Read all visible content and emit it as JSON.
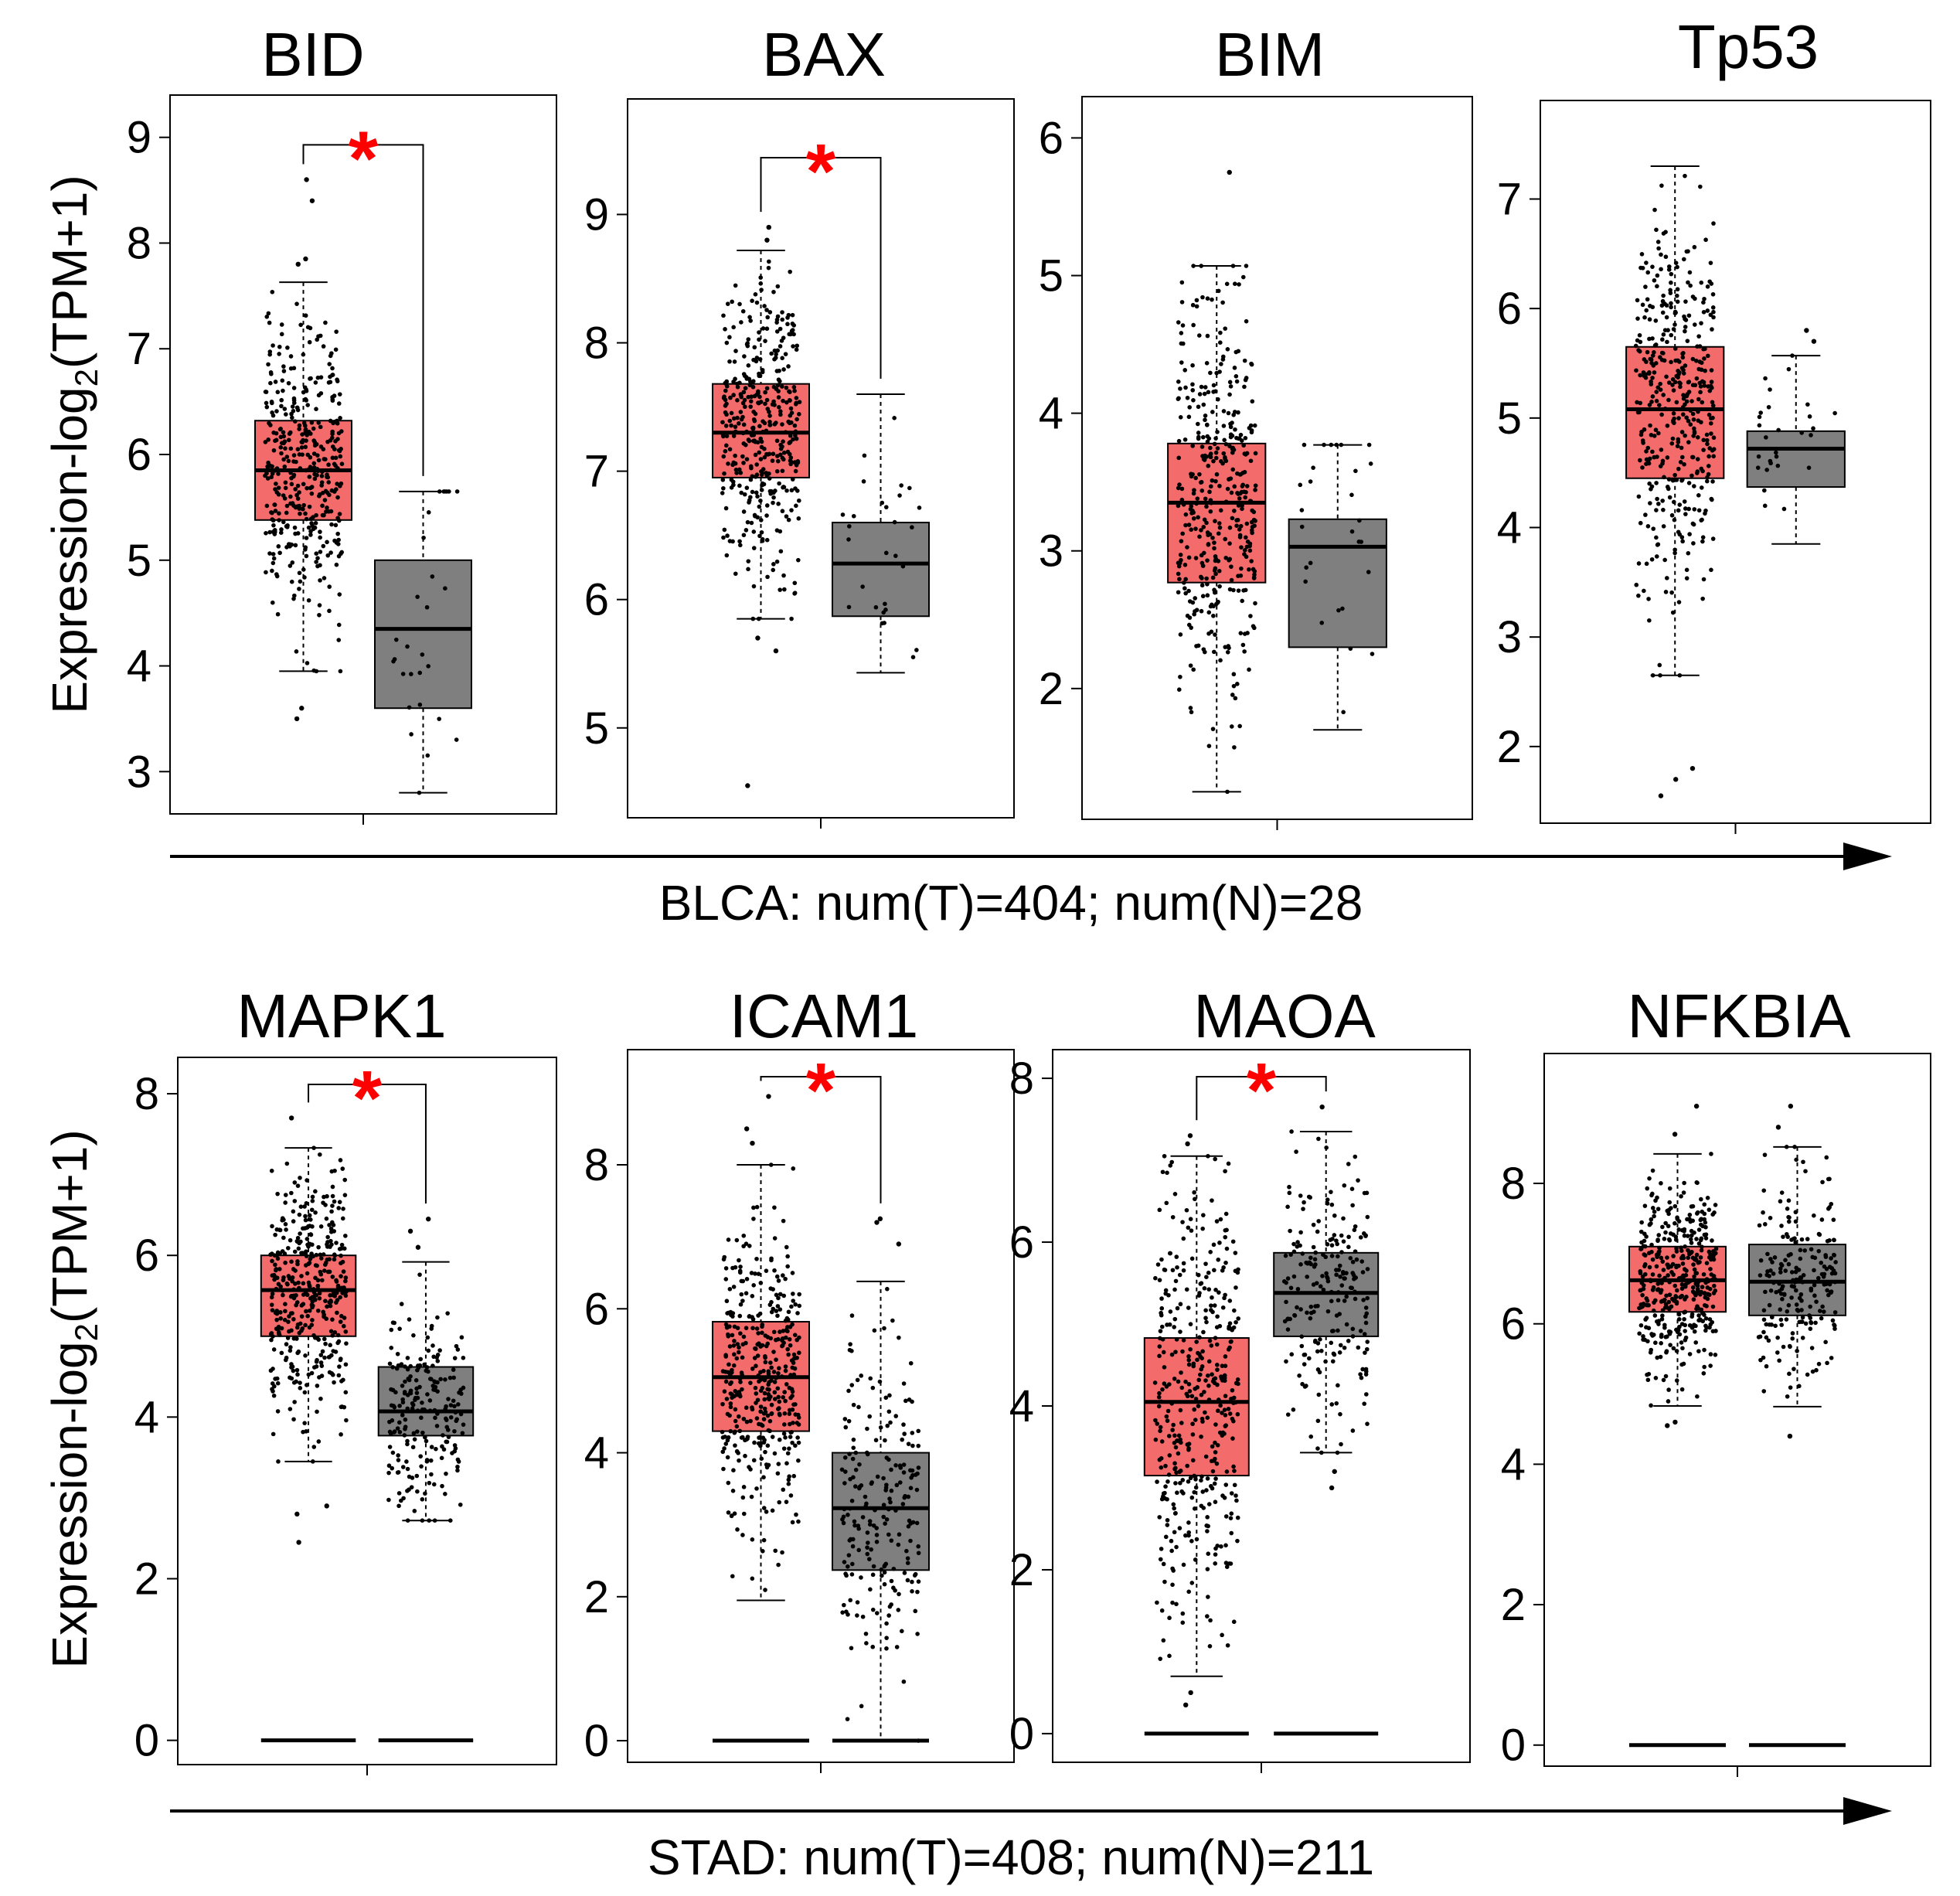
{
  "figure": {
    "colors": {
      "tumor": "#F36B6B",
      "normal": "#7F7F7F",
      "star": "#FF0000",
      "point": "#000000"
    },
    "ylabel_prefix": "Expression-log",
    "ylabel_sub": "2",
    "ylabel_suffix": "(TPM+1)",
    "star_symbol": "*"
  },
  "groups": [
    {
      "caption": "BLCA: num(T)=404; num(N)=28"
    },
    {
      "caption": "STAD: num(T)=408; num(N)=211"
    }
  ],
  "chart_data": [
    {
      "type": "box",
      "title": "BID",
      "ylim": [
        2.6,
        9.4
      ],
      "yticks": [
        3,
        4,
        5,
        6,
        7,
        8,
        9
      ],
      "significant": true,
      "series": [
        {
          "name": "Tumor",
          "n": 404,
          "q1": 5.38,
          "median": 5.85,
          "q3": 6.32,
          "whisker_low": 3.95,
          "whisker_high": 7.63,
          "min": 3.45,
          "max": 8.6,
          "outliers": [
            8.6,
            8.4,
            7.85,
            7.8,
            3.6,
            3.5
          ]
        },
        {
          "name": "Normal",
          "n": 28,
          "q1": 3.6,
          "median": 4.35,
          "q3": 5.0,
          "whisker_low": 2.8,
          "whisker_high": 5.65,
          "min": 2.8,
          "max": 5.65,
          "outliers": []
        }
      ]
    },
    {
      "type": "box",
      "title": "BAX",
      "ylim": [
        4.3,
        9.9
      ],
      "yticks": [
        5,
        6,
        7,
        8,
        9
      ],
      "significant": true,
      "series": [
        {
          "name": "Tumor",
          "n": 404,
          "q1": 6.95,
          "median": 7.3,
          "q3": 7.68,
          "whisker_low": 5.85,
          "whisker_high": 8.72,
          "min": 4.55,
          "max": 8.9,
          "outliers": [
            8.9,
            8.8,
            5.7,
            5.6,
            4.55
          ]
        },
        {
          "name": "Normal",
          "n": 28,
          "q1": 5.87,
          "median": 6.28,
          "q3": 6.6,
          "whisker_low": 5.43,
          "whisker_high": 7.6,
          "min": 5.43,
          "max": 7.6,
          "outliers": []
        }
      ]
    },
    {
      "type": "box",
      "title": "BIM",
      "ylim": [
        1.05,
        6.3
      ],
      "yticks": [
        2,
        3,
        4,
        5,
        6
      ],
      "significant": false,
      "series": [
        {
          "name": "Tumor",
          "n": 404,
          "q1": 2.77,
          "median": 3.35,
          "q3": 3.78,
          "whisker_low": 1.25,
          "whisker_high": 5.07,
          "min": 1.25,
          "max": 5.75,
          "outliers": [
            5.75
          ]
        },
        {
          "name": "Normal",
          "n": 28,
          "q1": 2.3,
          "median": 3.03,
          "q3": 3.23,
          "whisker_low": 1.7,
          "whisker_high": 3.77,
          "min": 1.7,
          "max": 3.77,
          "outliers": []
        }
      ]
    },
    {
      "type": "box",
      "title": "Tp53",
      "ylim": [
        1.3,
        7.9
      ],
      "yticks": [
        2,
        3,
        4,
        5,
        6,
        7
      ],
      "significant": false,
      "series": [
        {
          "name": "Tumor",
          "n": 404,
          "q1": 4.45,
          "median": 5.08,
          "q3": 5.65,
          "whisker_low": 2.65,
          "whisker_high": 7.3,
          "min": 1.55,
          "max": 7.3,
          "outliers": [
            1.8,
            1.7,
            1.55
          ]
        },
        {
          "name": "Normal",
          "n": 28,
          "q1": 4.37,
          "median": 4.72,
          "q3": 4.88,
          "whisker_low": 3.85,
          "whisker_high": 5.57,
          "min": 3.85,
          "max": 5.8,
          "outliers": [
            5.8,
            5.7
          ]
        }
      ]
    },
    {
      "type": "box",
      "title": "MAPK1",
      "ylim": [
        -0.3,
        8.45
      ],
      "yticks": [
        0,
        2,
        4,
        6,
        8
      ],
      "significant": true,
      "series": [
        {
          "name": "Tumor",
          "n": 408,
          "q1": 5.0,
          "median": 5.57,
          "q3": 6.0,
          "whisker_low": 3.45,
          "whisker_high": 7.33,
          "min": 2.45,
          "max": 7.7,
          "outliers": [
            7.7,
            2.9,
            2.8,
            2.45
          ],
          "zero_line": true
        },
        {
          "name": "Normal",
          "n": 211,
          "q1": 3.77,
          "median": 4.07,
          "q3": 4.62,
          "whisker_low": 2.72,
          "whisker_high": 5.92,
          "min": 2.72,
          "max": 6.45,
          "outliers": [
            6.45,
            6.3,
            6.1
          ],
          "zero_line": true
        }
      ]
    },
    {
      "type": "box",
      "title": "ICAM1",
      "ylim": [
        -0.3,
        9.6
      ],
      "yticks": [
        0,
        2,
        4,
        6,
        8
      ],
      "significant": true,
      "series": [
        {
          "name": "Tumor",
          "n": 408,
          "q1": 4.3,
          "median": 5.05,
          "q3": 5.82,
          "whisker_low": 1.95,
          "whisker_high": 8.0,
          "min": 1.95,
          "max": 8.95,
          "outliers": [
            8.95,
            8.5,
            8.3
          ],
          "zero_line": true
        },
        {
          "name": "Normal",
          "n": 211,
          "q1": 2.37,
          "median": 3.23,
          "q3": 4.0,
          "whisker_low": 0.0,
          "whisker_high": 6.38,
          "min": 0.0,
          "max": 7.25,
          "outliers": [
            7.25,
            7.2,
            6.9
          ],
          "zero_line": true
        }
      ]
    },
    {
      "type": "box",
      "title": "MAOA",
      "ylim": [
        -0.35,
        8.35
      ],
      "yticks": [
        0,
        2,
        4,
        6,
        8
      ],
      "significant": true,
      "series": [
        {
          "name": "Tumor",
          "n": 408,
          "q1": 3.15,
          "median": 4.05,
          "q3": 4.83,
          "whisker_low": 0.7,
          "whisker_high": 7.05,
          "min": 0.35,
          "max": 7.3,
          "outliers": [
            7.3,
            7.2,
            0.5,
            0.35
          ],
          "zero_line": true
        },
        {
          "name": "Normal",
          "n": 211,
          "q1": 4.85,
          "median": 5.38,
          "q3": 5.87,
          "whisker_low": 3.43,
          "whisker_high": 7.35,
          "min": 3.0,
          "max": 7.65,
          "outliers": [
            7.65,
            3.2,
            3.0
          ],
          "zero_line": true
        }
      ]
    },
    {
      "type": "box",
      "title": "NFKBIA",
      "ylim": [
        -0.3,
        9.85
      ],
      "yticks": [
        0,
        2,
        4,
        6,
        8
      ],
      "significant": false,
      "series": [
        {
          "name": "Tumor",
          "n": 408,
          "q1": 6.17,
          "median": 6.62,
          "q3": 7.1,
          "whisker_low": 4.83,
          "whisker_high": 8.42,
          "min": 4.55,
          "max": 9.1,
          "outliers": [
            9.1,
            8.7,
            4.6,
            4.55
          ],
          "zero_line": true
        },
        {
          "name": "Normal",
          "n": 211,
          "q1": 6.12,
          "median": 6.6,
          "q3": 7.13,
          "whisker_low": 4.82,
          "whisker_high": 8.52,
          "min": 4.4,
          "max": 9.1,
          "outliers": [
            9.1,
            8.8,
            4.4
          ],
          "zero_line": true
        }
      ]
    }
  ]
}
